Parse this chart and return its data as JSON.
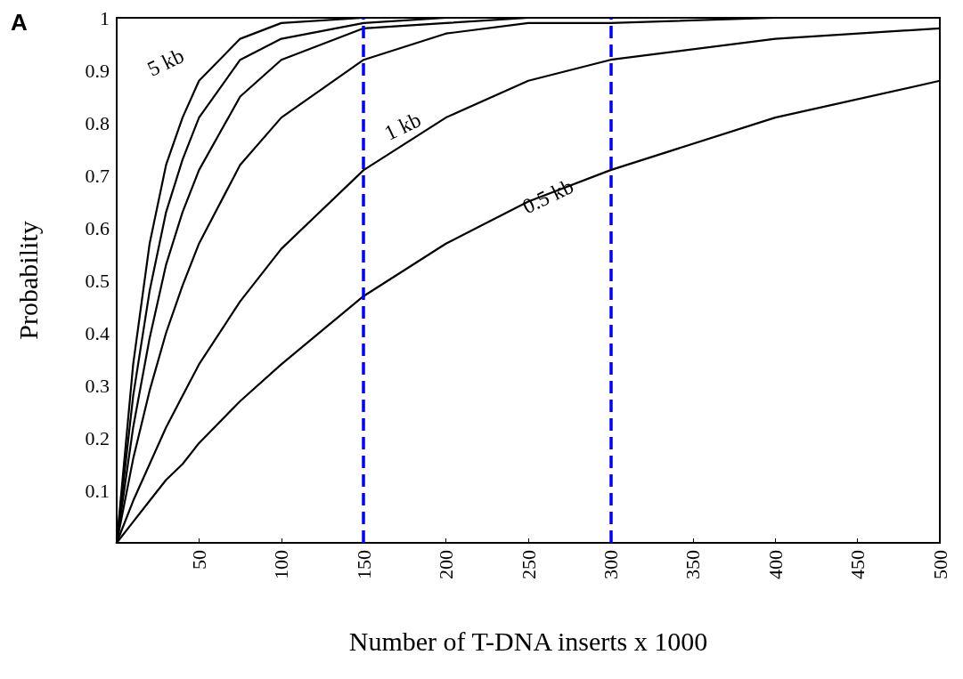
{
  "chart_data": {
    "type": "line",
    "xlabel": "Number of T-DNA inserts x 1000",
    "ylabel": "Probability",
    "x": [
      0,
      10,
      20,
      30,
      40,
      50,
      75,
      100,
      150,
      200,
      250,
      300,
      400,
      500
    ],
    "series": [
      {
        "color": "#000000",
        "values": [
          0,
          0.04,
          0.08,
          0.12,
          0.15,
          0.19,
          0.27,
          0.34,
          0.47,
          0.57,
          0.65,
          0.71,
          0.81,
          0.88
        ]
      },
      {
        "color": "#000000",
        "values": [
          0,
          0.08,
          0.15,
          0.22,
          0.28,
          0.34,
          0.46,
          0.56,
          0.71,
          0.81,
          0.88,
          0.92,
          0.96,
          0.98
        ]
      },
      {
        "color": "#000000",
        "x": [
          0,
          10,
          20,
          30,
          40,
          50,
          75,
          100,
          150,
          200,
          250,
          300,
          400
        ],
        "values": [
          0,
          0.16,
          0.29,
          0.4,
          0.49,
          0.57,
          0.72,
          0.81,
          0.92,
          0.97,
          0.99,
          0.99,
          1
        ]
      },
      {
        "color": "#000000",
        "x": [
          0,
          10,
          20,
          30,
          40,
          50,
          75,
          100,
          150,
          200,
          250
        ],
        "values": [
          0,
          0.22,
          0.39,
          0.53,
          0.63,
          0.71,
          0.85,
          0.92,
          0.98,
          0.99,
          1
        ]
      },
      {
        "color": "#000000",
        "x": [
          0,
          10,
          20,
          30,
          40,
          50,
          75,
          100,
          150,
          200
        ],
        "values": [
          0,
          0.28,
          0.48,
          0.63,
          0.73,
          0.81,
          0.92,
          0.96,
          0.99,
          1
        ]
      },
      {
        "color": "#000000",
        "x": [
          0,
          10,
          20,
          30,
          40,
          50,
          75,
          100,
          150
        ],
        "values": [
          0,
          0.34,
          0.57,
          0.72,
          0.81,
          0.88,
          0.96,
          0.99,
          1
        ]
      }
    ],
    "xlim": [
      0,
      500
    ],
    "xticks": [
      50,
      100,
      150,
      200,
      250,
      300,
      350,
      400,
      450,
      500
    ],
    "ylim": [
      0,
      1
    ],
    "yticks": [
      0.1,
      0.2,
      0.3,
      0.4,
      0.5,
      0.6,
      0.7,
      0.8,
      0.9,
      1
    ],
    "ref_lines": [
      {
        "axis": "x",
        "value": 150,
        "color": "#0000ff",
        "line_style": "dashed"
      },
      {
        "axis": "x",
        "value": 300,
        "color": "#0000ff",
        "line_style": "dashed"
      }
    ],
    "annotations": [
      "A",
      "5 kb",
      "1 kb",
      {
        "text": "0.5 kb",
        "x": 262,
        "y": 0.66
      }
    ],
    "grid": false,
    "marker": "none",
    "line_style": "solid"
  }
}
